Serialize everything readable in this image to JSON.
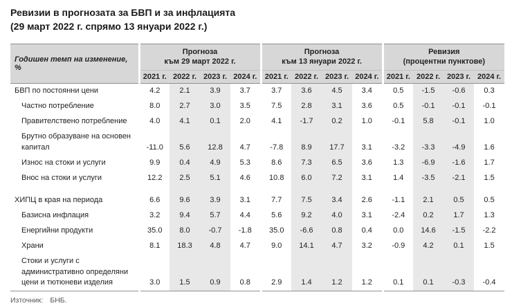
{
  "title_line1": "Ревизии в прогнозата за БВП и за инфлацията",
  "title_line2": "(29 март 2022 г. спрямо 13 януари 2022 г.)",
  "source_label": "Източник:",
  "source_value": "БНБ.",
  "colors": {
    "header_bg": "#d7d7d7",
    "stripe_bg": "#e8e8e8",
    "border": "#8f8f8f"
  },
  "table": {
    "row_header": "Годишен темп на изменение, %",
    "groups": [
      {
        "title_line1": "Прогноза",
        "title_line2": "към 29 март 2022 г.",
        "years": [
          "2021 г.",
          "2022 г.",
          "2023 г.",
          "2024 г."
        ]
      },
      {
        "title_line1": "Прогноза",
        "title_line2": "към 13 януари 2022 г.",
        "years": [
          "2021 г.",
          "2022 г.",
          "2023 г.",
          "2024 г."
        ]
      },
      {
        "title_line1": "Ревизия",
        "title_line2": "(процентни пунктове)",
        "years": [
          "2021 г.",
          "2022 г.",
          "2023 г.",
          "2024 г."
        ]
      }
    ],
    "rows": [
      {
        "label": "БВП по постоянни цени",
        "indent": false,
        "gap": false,
        "values": [
          "4.2",
          "2.1",
          "3.9",
          "3.7",
          "3.7",
          "3.6",
          "4.5",
          "3.4",
          "0.5",
          "-1.5",
          "-0.6",
          "0.3"
        ]
      },
      {
        "label": "Частно потребление",
        "indent": true,
        "gap": false,
        "values": [
          "8.0",
          "2.7",
          "3.0",
          "3.5",
          "7.5",
          "2.8",
          "3.1",
          "3.6",
          "0.5",
          "-0.1",
          "-0.1",
          "-0.1"
        ]
      },
      {
        "label": "Правителствено потребление",
        "indent": true,
        "gap": false,
        "values": [
          "4.0",
          "4.1",
          "0.1",
          "2.0",
          "4.1",
          "-1.7",
          "0.2",
          "1.0",
          "-0.1",
          "5.8",
          "-0.1",
          "1.0"
        ]
      },
      {
        "label": "Брутно образуване на основен капитал",
        "indent": true,
        "gap": false,
        "values": [
          "-11.0",
          "5.6",
          "12.8",
          "4.7",
          "-7.8",
          "8.9",
          "17.7",
          "3.1",
          "-3.2",
          "-3.3",
          "-4.9",
          "1.6"
        ]
      },
      {
        "label": "Износ на стоки и услуги",
        "indent": true,
        "gap": false,
        "values": [
          "9.9",
          "0.4",
          "4.9",
          "5.3",
          "8.6",
          "7.3",
          "6.5",
          "3.6",
          "1.3",
          "-6.9",
          "-1.6",
          "1.7"
        ]
      },
      {
        "label": "Внос на стоки и услуги",
        "indent": true,
        "gap": false,
        "values": [
          "12.2",
          "2.5",
          "5.1",
          "4.6",
          "10.8",
          "6.0",
          "7.2",
          "3.1",
          "1.4",
          "-3.5",
          "-2.1",
          "1.5"
        ]
      },
      {
        "label": "ХИПЦ в края на периода",
        "indent": false,
        "gap": true,
        "values": [
          "6.6",
          "9.6",
          "3.9",
          "3.1",
          "7.7",
          "7.5",
          "3.4",
          "2.6",
          "-1.1",
          "2.1",
          "0.5",
          "0.5"
        ]
      },
      {
        "label": "Базисна инфлация",
        "indent": true,
        "gap": false,
        "values": [
          "3.2",
          "9.4",
          "5.7",
          "4.4",
          "5.6",
          "9.2",
          "4.0",
          "3.1",
          "-2.4",
          "0.2",
          "1.7",
          "1.3"
        ]
      },
      {
        "label": "Енергийни продукти",
        "indent": true,
        "gap": false,
        "values": [
          "35.0",
          "8.0",
          "-0.7",
          "-1.8",
          "35.0",
          "-6.6",
          "0.8",
          "0.4",
          "0.0",
          "14.6",
          "-1.5",
          "-2.2"
        ]
      },
      {
        "label": "Храни",
        "indent": true,
        "gap": false,
        "values": [
          "8.1",
          "18.3",
          "4.8",
          "4.7",
          "9.0",
          "14.1",
          "4.7",
          "3.2",
          "-0.9",
          "4.2",
          "0.1",
          "1.5"
        ]
      },
      {
        "label": "Стоки и услуги с административно определяни цени и тютюневи изделия",
        "indent": true,
        "gap": false,
        "values": [
          "3.0",
          "1.5",
          "0.9",
          "0.8",
          "2.9",
          "1.4",
          "1.2",
          "1.2",
          "0.1",
          "0.1",
          "-0.3",
          "-0.4"
        ]
      }
    ]
  }
}
